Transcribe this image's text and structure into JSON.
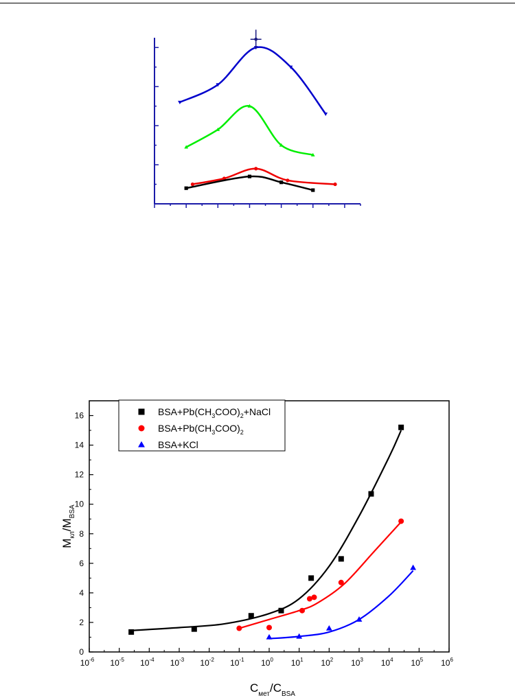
{
  "chart_data": [
    {
      "type": "line",
      "title": "",
      "xlabel": "",
      "ylabel": "",
      "xlim": [
        0,
        6.5
      ],
      "ylim": [
        0,
        8.5
      ],
      "grid": false,
      "series": [
        {
          "color": "#0000cc",
          "marker": "triangle-down",
          "points": [
            [
              0.8,
              5.2
            ],
            [
              2.0,
              6.1
            ],
            [
              3.2,
              8.0
            ],
            [
              4.3,
              7.0
            ],
            [
              5.4,
              4.6
            ]
          ]
        },
        {
          "color": "#00ee00",
          "marker": "triangle",
          "points": [
            [
              1.0,
              2.9
            ],
            [
              2.0,
              3.8
            ],
            [
              3.0,
              5.0
            ],
            [
              4.0,
              3.0
            ],
            [
              5.0,
              2.5
            ]
          ]
        },
        {
          "color": "#ee0000",
          "marker": "circle",
          "points": [
            [
              1.2,
              1.0
            ],
            [
              2.2,
              1.3
            ],
            [
              3.2,
              1.8
            ],
            [
              4.2,
              1.2
            ],
            [
              5.7,
              1.0
            ]
          ]
        },
        {
          "color": "#000000",
          "marker": "square",
          "points": [
            [
              1.0,
              0.8
            ],
            [
              3.0,
              1.4
            ],
            [
              4.0,
              1.1
            ],
            [
              5.0,
              0.7
            ]
          ]
        }
      ]
    },
    {
      "type": "scatter",
      "title": "",
      "xlabel": "C",
      "xlabel_sub": "мет",
      "xlabel_sep": "/C",
      "xlabel_sub2": "BSA",
      "ylabel": "M",
      "ylabel_sub": "кл",
      "ylabel_sep": "/M",
      "ylabel_sub2": "BSA",
      "xscale": "log",
      "xlim": [
        -6,
        6
      ],
      "ylim": [
        0,
        17
      ],
      "x_ticks": [
        -6,
        -5,
        -4,
        -3,
        -2,
        -1,
        0,
        1,
        2,
        3,
        4,
        5,
        6
      ],
      "x_tick_base": "10",
      "x_tick_exps": [
        "-6",
        "-5",
        "-4",
        "-3",
        "-2",
        "-1",
        "0",
        "1",
        "2",
        "3",
        "4",
        "5",
        "6"
      ],
      "y_ticks": [
        0,
        2,
        4,
        6,
        8,
        10,
        12,
        14,
        16
      ],
      "y_tick_labels": [
        "0",
        "2",
        "4",
        "6",
        "8",
        "10",
        "12",
        "14",
        "16"
      ],
      "legend_position": "top-left",
      "grid": false,
      "series": [
        {
          "name_parts": [
            "BSA+Pb(CH",
            "3",
            "COO)",
            "2",
            "+NaCl"
          ],
          "color": "#000000",
          "marker": "square",
          "points": [
            [
              -4.6,
              1.35
            ],
            [
              -2.5,
              1.55
            ],
            [
              -0.6,
              2.45
            ],
            [
              0.4,
              2.8
            ],
            [
              1.4,
              5.0
            ],
            [
              2.4,
              6.3
            ],
            [
              3.4,
              10.7
            ],
            [
              4.4,
              15.2
            ]
          ],
          "fit": [
            [
              -4.6,
              1.45
            ],
            [
              -3.0,
              1.65
            ],
            [
              -1.5,
              1.9
            ],
            [
              0.0,
              2.6
            ],
            [
              1.0,
              3.6
            ],
            [
              2.0,
              5.8
            ],
            [
              3.0,
              9.2
            ],
            [
              4.0,
              13.2
            ],
            [
              4.4,
              15.0
            ]
          ]
        },
        {
          "name_parts": [
            "BSA+Pb(CH",
            "3",
            "COO)",
            "2",
            ""
          ],
          "color": "#ff0000",
          "marker": "circle",
          "points": [
            [
              -1.0,
              1.6
            ],
            [
              0.0,
              1.65
            ],
            [
              1.1,
              2.8
            ],
            [
              1.35,
              3.6
            ],
            [
              1.5,
              3.7
            ],
            [
              2.4,
              4.7
            ],
            [
              4.4,
              8.85
            ]
          ],
          "fit": [
            [
              -1.0,
              1.6
            ],
            [
              0.0,
              2.2
            ],
            [
              1.0,
              2.8
            ],
            [
              1.6,
              3.3
            ],
            [
              2.5,
              4.6
            ],
            [
              3.5,
              6.8
            ],
            [
              4.4,
              8.8
            ]
          ]
        },
        {
          "name_parts": [
            "BSA+KCl",
            "",
            "",
            "",
            ""
          ],
          "color": "#0000ff",
          "marker": "triangle",
          "points": [
            [
              0.0,
              1.0
            ],
            [
              1.0,
              1.05
            ],
            [
              2.0,
              1.6
            ],
            [
              3.0,
              2.2
            ],
            [
              4.8,
              5.7
            ]
          ],
          "fit": [
            [
              0.0,
              0.9
            ],
            [
              1.0,
              1.05
            ],
            [
              2.0,
              1.35
            ],
            [
              3.0,
              2.2
            ],
            [
              4.0,
              3.8
            ],
            [
              4.8,
              5.5
            ]
          ]
        }
      ]
    }
  ]
}
